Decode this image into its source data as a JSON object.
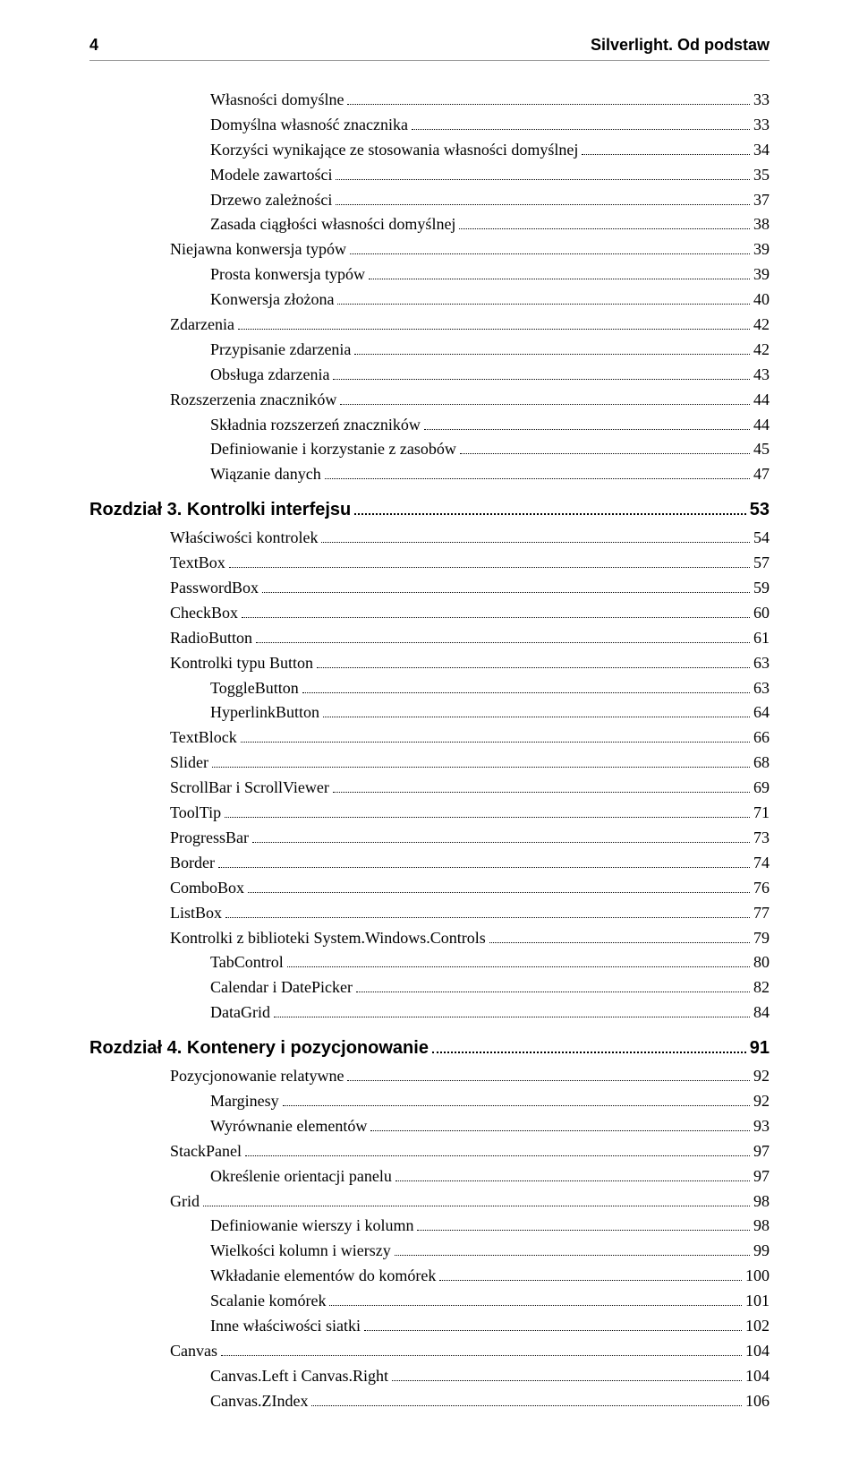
{
  "page_number": "4",
  "book_title": "Silverlight. Od podstaw",
  "font_sizes": {
    "body_pt": 18,
    "chapter_pt": 20,
    "header_pt": 18
  },
  "colors": {
    "text": "#000000",
    "rule": "#999999",
    "background": "#ffffff"
  },
  "toc": [
    {
      "label": "Własności domyślne",
      "page": "33",
      "indent": 2
    },
    {
      "label": "Domyślna własność znacznika",
      "page": "33",
      "indent": 2
    },
    {
      "label": "Korzyści wynikające ze stosowania własności domyślnej",
      "page": "34",
      "indent": 2
    },
    {
      "label": "Modele zawartości",
      "page": "35",
      "indent": 2
    },
    {
      "label": "Drzewo zależności",
      "page": "37",
      "indent": 2
    },
    {
      "label": "Zasada ciągłości własności domyślnej",
      "page": "38",
      "indent": 2
    },
    {
      "label": "Niejawna konwersja typów",
      "page": "39",
      "indent": 1
    },
    {
      "label": "Prosta konwersja typów",
      "page": "39",
      "indent": 2
    },
    {
      "label": "Konwersja złożona",
      "page": "40",
      "indent": 2
    },
    {
      "label": "Zdarzenia",
      "page": "42",
      "indent": 1
    },
    {
      "label": "Przypisanie zdarzenia",
      "page": "42",
      "indent": 2
    },
    {
      "label": "Obsługa zdarzenia",
      "page": "43",
      "indent": 2
    },
    {
      "label": "Rozszerzenia znaczników",
      "page": "44",
      "indent": 1
    },
    {
      "label": "Składnia rozszerzeń znaczników",
      "page": "44",
      "indent": 2
    },
    {
      "label": "Definiowanie i korzystanie z zasobów",
      "page": "45",
      "indent": 2
    },
    {
      "label": "Wiązanie danych",
      "page": "47",
      "indent": 2
    },
    {
      "label": "Rozdział 3. Kontrolki interfejsu",
      "page": "53",
      "indent": 0,
      "chapter": true
    },
    {
      "label": "Właściwości kontrolek",
      "page": "54",
      "indent": 1
    },
    {
      "label": "TextBox",
      "page": "57",
      "indent": 1
    },
    {
      "label": "PasswordBox",
      "page": "59",
      "indent": 1
    },
    {
      "label": "CheckBox",
      "page": "60",
      "indent": 1
    },
    {
      "label": "RadioButton",
      "page": "61",
      "indent": 1
    },
    {
      "label": "Kontrolki typu Button",
      "page": "63",
      "indent": 1
    },
    {
      "label": "ToggleButton",
      "page": "63",
      "indent": 2
    },
    {
      "label": "HyperlinkButton",
      "page": "64",
      "indent": 2
    },
    {
      "label": "TextBlock",
      "page": "66",
      "indent": 1
    },
    {
      "label": "Slider",
      "page": "68",
      "indent": 1
    },
    {
      "label": "ScrollBar i ScrollViewer",
      "page": "69",
      "indent": 1
    },
    {
      "label": "ToolTip",
      "page": "71",
      "indent": 1
    },
    {
      "label": "ProgressBar",
      "page": "73",
      "indent": 1
    },
    {
      "label": "Border",
      "page": "74",
      "indent": 1
    },
    {
      "label": "ComboBox",
      "page": "76",
      "indent": 1
    },
    {
      "label": "ListBox",
      "page": "77",
      "indent": 1
    },
    {
      "label": "Kontrolki z biblioteki System.Windows.Controls",
      "page": "79",
      "indent": 1
    },
    {
      "label": "TabControl",
      "page": "80",
      "indent": 2
    },
    {
      "label": "Calendar i DatePicker",
      "page": "82",
      "indent": 2
    },
    {
      "label": "DataGrid",
      "page": "84",
      "indent": 2
    },
    {
      "label": "Rozdział 4. Kontenery i pozycjonowanie",
      "page": "91",
      "indent": 0,
      "chapter": true
    },
    {
      "label": "Pozycjonowanie relatywne",
      "page": "92",
      "indent": 1
    },
    {
      "label": "Marginesy",
      "page": "92",
      "indent": 2
    },
    {
      "label": "Wyrównanie elementów",
      "page": "93",
      "indent": 2
    },
    {
      "label": "StackPanel",
      "page": "97",
      "indent": 1
    },
    {
      "label": "Określenie orientacji panelu",
      "page": "97",
      "indent": 2
    },
    {
      "label": "Grid",
      "page": "98",
      "indent": 1
    },
    {
      "label": "Definiowanie wierszy i kolumn",
      "page": "98",
      "indent": 2
    },
    {
      "label": "Wielkości kolumn i wierszy",
      "page": "99",
      "indent": 2
    },
    {
      "label": "Wkładanie elementów do komórek",
      "page": "100",
      "indent": 2
    },
    {
      "label": "Scalanie komórek",
      "page": "101",
      "indent": 2
    },
    {
      "label": "Inne właściwości siatki",
      "page": "102",
      "indent": 2
    },
    {
      "label": "Canvas",
      "page": "104",
      "indent": 1
    },
    {
      "label": "Canvas.Left i Canvas.Right",
      "page": "104",
      "indent": 2
    },
    {
      "label": "Canvas.ZIndex",
      "page": "106",
      "indent": 2
    }
  ]
}
